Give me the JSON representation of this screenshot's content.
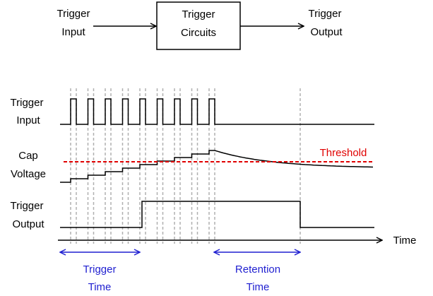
{
  "block_diagram": {
    "input": [
      "Trigger",
      "Input"
    ],
    "box": [
      "Trigger",
      "Circuits"
    ],
    "output": [
      "Trigger",
      "Output"
    ]
  },
  "timing": {
    "signals": [
      [
        "Trigger",
        "Input"
      ],
      [
        "Cap",
        "Voltage"
      ],
      [
        "Trigger",
        "Output"
      ]
    ],
    "threshold": "Threshold",
    "axis": "Time",
    "spans": [
      [
        "Retention",
        "Time"
      ]
    ],
    "first_span": [
      "Trigger",
      "Time"
    ]
  }
}
